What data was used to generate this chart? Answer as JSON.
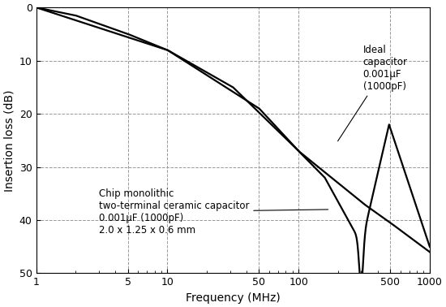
{
  "title": "",
  "xlabel": "Frequency (MHz)",
  "ylabel": "Insertion loss (dB)",
  "ylim": [
    0,
    50
  ],
  "yticks": [
    0,
    10,
    20,
    30,
    40,
    50
  ],
  "xticks_major": [
    1,
    5,
    10,
    50,
    100,
    500,
    1000
  ],
  "grid_color": "#999999",
  "line_color": "#000000",
  "bg_color": "#ffffff",
  "annotation_ideal": "Ideal\ncapacitor\n0.001μF\n(1000pF)",
  "annotation_chip": "Chip monolithic\ntwo-terminal ceramic capacitor\n0.001μF (1000pF)\n2.0 x 1.25 x 0.6 mm",
  "fontsize_label": 10,
  "fontsize_tick": 9,
  "fontsize_annot": 8.5
}
